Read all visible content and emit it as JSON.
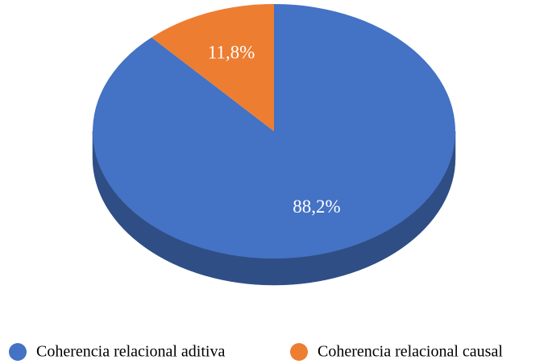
{
  "chart_data": {
    "type": "pie",
    "categories": [
      "Coherencia relacional aditiva",
      "Coherencia relacional causal"
    ],
    "values": [
      88.2,
      11.8
    ],
    "value_labels": [
      "88,2%",
      "11,8%"
    ],
    "colors": [
      "#4472c4",
      "#ed7d31"
    ],
    "legend": "bottom"
  }
}
